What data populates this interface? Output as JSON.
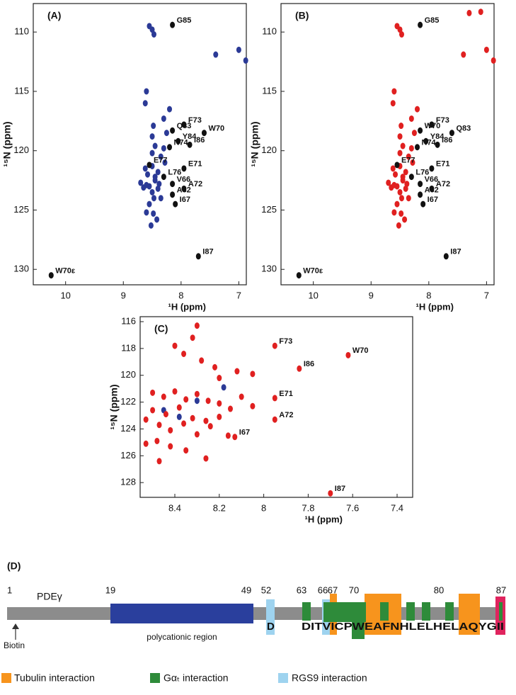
{
  "chart_data": [
    {
      "type": "scatter",
      "title": "(A)",
      "xlabel": "¹H (ppm)",
      "ylabel": "¹⁵N (ppm)",
      "xlim": [
        10.56,
        6.87
      ],
      "ylim": [
        107.6,
        131.3
      ],
      "xticks": [
        10,
        9,
        8,
        7
      ],
      "yticks": [
        110,
        115,
        120,
        125,
        130
      ],
      "series": [
        {
          "color": "#2b3a96",
          "x": [
            8.62,
            8.58,
            8.5,
            8.45,
            8.4,
            8.38,
            8.35,
            8.3,
            8.28,
            8.25,
            8.55,
            8.5,
            8.45,
            8.4,
            8.35,
            8.6,
            8.55,
            8.48,
            8.42,
            8.52,
            8.47,
            8.5,
            8.45,
            8.65,
            8.7,
            8.6,
            8.5,
            8.48,
            8.3,
            8.2,
            8.55,
            7.4,
            7.0,
            6.88,
            8.5,
            8.47,
            8.62,
            8.6
          ],
          "values": [
            121.5,
            122,
            121.3,
            122.5,
            121.8,
            122.8,
            120.5,
            119.8,
            121,
            118.5,
            123,
            123.5,
            122.2,
            123.2,
            124,
            122.9,
            124.5,
            125.3,
            125.8,
            126.3,
            124,
            120.2,
            119.6,
            123.1,
            122.7,
            125.2,
            118.8,
            117.9,
            117.3,
            116.5,
            109.5,
            111.9,
            111.5,
            112.4,
            109.8,
            110.2,
            116,
            115
          ]
        },
        {
          "color": "#111111",
          "x": [
            8.15,
            7.95,
            7.6,
            8.15,
            8.05,
            8.2,
            7.85,
            8.55,
            7.95,
            8.3,
            8.15,
            7.95,
            8.15,
            8.1,
            7.7,
            10.25
          ],
          "values": [
            109.4,
            117.8,
            118.5,
            118.3,
            119.2,
            119.7,
            119.5,
            121.2,
            121.5,
            122.2,
            122.8,
            123.2,
            123.7,
            124.5,
            128.9,
            130.5
          ],
          "labels": [
            "G85",
            "F73",
            "W70",
            "Q83",
            "Y84",
            "N74",
            "I86",
            "E77",
            "E71",
            "L76",
            "V66",
            "A72",
            "A82",
            "I67",
            "I87",
            "W70ε"
          ]
        }
      ]
    },
    {
      "type": "scatter",
      "title": "(B)",
      "xlabel": "¹H (ppm)",
      "ylabel": "¹⁵N (ppm)",
      "xlim": [
        10.56,
        6.87
      ],
      "ylim": [
        107.6,
        131.3
      ],
      "xticks": [
        10,
        9,
        8,
        7
      ],
      "yticks": [
        110,
        115,
        120,
        125,
        130
      ],
      "series": [
        {
          "color": "#e02020",
          "x": [
            8.62,
            8.58,
            8.5,
            8.45,
            8.4,
            8.38,
            8.35,
            8.3,
            8.28,
            8.25,
            8.55,
            8.5,
            8.45,
            8.4,
            8.35,
            8.6,
            8.55,
            8.48,
            8.42,
            8.52,
            8.47,
            8.5,
            8.45,
            8.65,
            8.7,
            8.6,
            8.5,
            8.48,
            8.3,
            8.2,
            8.55,
            7.4,
            7.0,
            6.88,
            8.5,
            8.47,
            8.62,
            8.6,
            7.3,
            7.1
          ],
          "values": [
            121.5,
            122,
            121.3,
            122.5,
            121.8,
            122.8,
            120.5,
            119.8,
            121,
            118.5,
            123,
            123.5,
            122.2,
            123.2,
            124,
            122.9,
            124.5,
            125.3,
            125.8,
            126.3,
            124,
            120.2,
            119.6,
            123.1,
            122.7,
            125.2,
            118.8,
            117.9,
            117.3,
            116.5,
            109.5,
            111.9,
            111.5,
            112.4,
            109.8,
            110.2,
            116,
            115,
            108.4,
            108.3
          ]
        },
        {
          "color": "#111111",
          "x": [
            8.15,
            7.95,
            7.6,
            8.15,
            8.05,
            8.2,
            7.85,
            8.55,
            7.95,
            8.3,
            8.15,
            7.95,
            8.15,
            8.1,
            7.7,
            10.25
          ],
          "values": [
            109.4,
            117.8,
            118.5,
            118.3,
            119.2,
            119.7,
            119.5,
            121.2,
            121.5,
            122.2,
            122.8,
            123.2,
            123.7,
            124.5,
            128.9,
            130.5
          ],
          "labels": [
            "G85",
            "F73",
            "Q83",
            "W70",
            "Y84",
            "N74",
            "I86",
            "E77",
            "E71",
            "L76",
            "V66",
            "A72",
            "A82",
            "I67",
            "I87",
            "W70ε"
          ]
        }
      ]
    },
    {
      "type": "scatter",
      "title": "(C)",
      "xlabel": "¹H (ppm)",
      "ylabel": "¹⁵N (ppm)",
      "xlim": [
        8.556,
        7.33
      ],
      "ylim": [
        115.63,
        129.1
      ],
      "xticks": [
        8.4,
        8.2,
        8.0,
        7.8,
        7.6,
        7.4
      ],
      "yticks": [
        116,
        118,
        120,
        122,
        124,
        126,
        128
      ],
      "series": [
        {
          "color": "#2b3a96",
          "x": [
            8.18,
            8.45,
            8.38,
            8.3
          ],
          "values": [
            120.9,
            122.6,
            123.1,
            121.9
          ]
        },
        {
          "color": "#e02020",
          "x": [
            8.3,
            8.32,
            8.4,
            8.36,
            8.28,
            8.22,
            8.2,
            8.12,
            8.05,
            8.5,
            8.45,
            8.4,
            8.35,
            8.3,
            8.25,
            8.2,
            8.15,
            8.1,
            8.05,
            8.5,
            8.44,
            8.38,
            8.32,
            8.26,
            8.2,
            8.53,
            8.47,
            8.42,
            8.36,
            8.3,
            8.24,
            8.16,
            8.48,
            8.42,
            8.53,
            8.47,
            8.35,
            8.26
          ],
          "values": [
            116.3,
            117.2,
            117.8,
            118.4,
            118.9,
            119.4,
            120.2,
            119.7,
            119.9,
            121.3,
            121.6,
            121.2,
            121.8,
            121.4,
            121.9,
            122.1,
            122.5,
            121.6,
            122.3,
            122.6,
            122.9,
            122.4,
            123.2,
            123.4,
            123.1,
            123.3,
            123.7,
            124.1,
            123.6,
            124.4,
            123.8,
            124.5,
            124.9,
            125.3,
            125.1,
            126.4,
            125.6,
            126.2
          ]
        },
        {
          "color": "#e02020",
          "x": [
            7.95,
            7.62,
            7.84,
            7.95,
            7.95,
            8.13,
            7.7
          ],
          "values": [
            117.8,
            118.5,
            119.5,
            121.7,
            123.3,
            124.6,
            128.8
          ],
          "labels": [
            "F73",
            "W70",
            "I86",
            "E71",
            "A72",
            "I67",
            "I87"
          ]
        }
      ]
    }
  ],
  "diagram": {
    "label": "(D)",
    "protein": "PDEγ",
    "numbers": [
      1,
      19,
      49,
      52,
      63,
      66,
      67,
      70,
      80,
      87
    ],
    "region": "polycationic region",
    "biotin": "Biotin",
    "residue": "D",
    "sequence": "DITVICPWEAFNHLELHELAQYGII",
    "legend": [
      "Tubulin interaction",
      "Gαₜ interaction",
      "RGS9 interaction"
    ]
  }
}
